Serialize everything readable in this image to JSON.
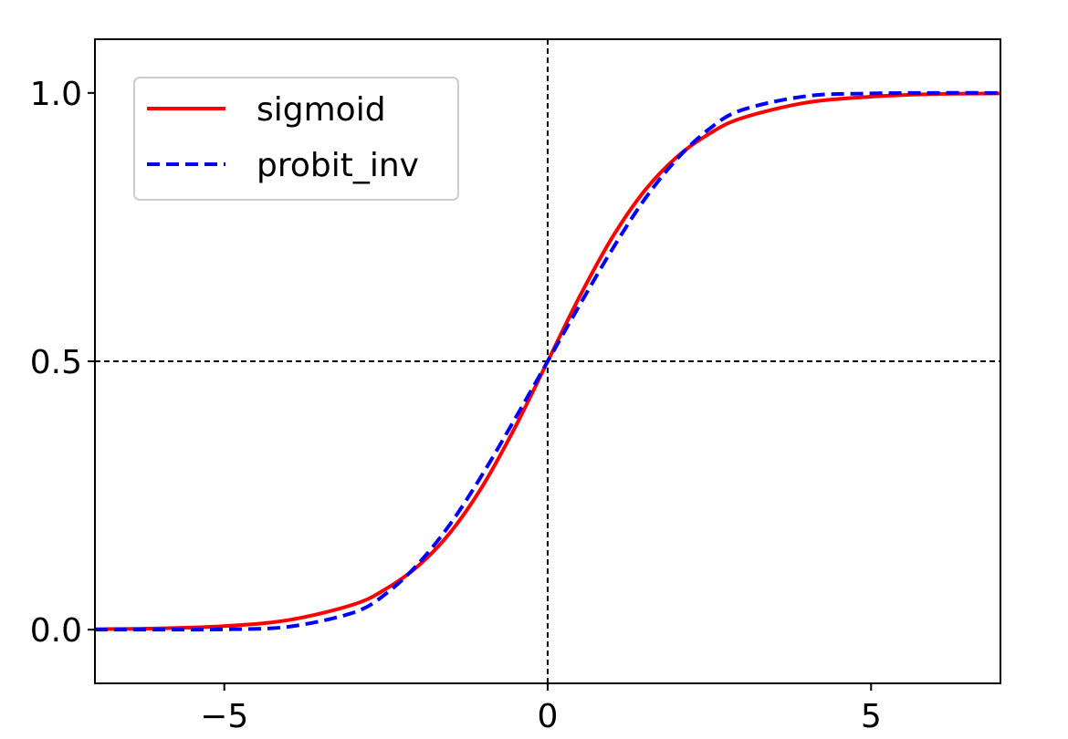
{
  "chart_data": {
    "type": "line",
    "title": "",
    "xlabel": "",
    "ylabel": "",
    "xlim": [
      -7,
      7
    ],
    "ylim": [
      -0.1,
      1.1
    ],
    "xticks": [
      -5,
      0,
      5
    ],
    "xtick_labels": [
      "−5",
      "0",
      "5"
    ],
    "yticks": [
      0.0,
      0.5,
      1.0
    ],
    "ytick_labels": [
      "0.0",
      "0.5",
      "1.0"
    ],
    "grid": false,
    "reference_lines": [
      {
        "orientation": "vertical",
        "value": 0,
        "color": "#000000",
        "style": "dashed"
      },
      {
        "orientation": "horizontal",
        "value": 0.5,
        "color": "#000000",
        "style": "dashed"
      }
    ],
    "legend": {
      "position": "top-left",
      "entries": [
        "sigmoid",
        "probit_inv"
      ]
    },
    "series": [
      {
        "name": "sigmoid",
        "color": "#ff0000",
        "style": "solid",
        "x": [
          -7,
          -6,
          -5,
          -4,
          -3,
          -2.5,
          -2,
          -1.5,
          -1,
          -0.5,
          0,
          0.5,
          1,
          1.5,
          2,
          2.5,
          3,
          4,
          5,
          6,
          7
        ],
        "values": [
          0.0009,
          0.0025,
          0.0067,
          0.018,
          0.047,
          0.076,
          0.119,
          0.182,
          0.269,
          0.378,
          0.5,
          0.622,
          0.731,
          0.818,
          0.881,
          0.924,
          0.953,
          0.982,
          0.993,
          0.998,
          0.999
        ]
      },
      {
        "name": "probit_inv",
        "color": "#0000ff",
        "style": "dashed",
        "x": [
          -7,
          -6,
          -5,
          -4,
          -3,
          -2.5,
          -2,
          -1.5,
          -1,
          -0.5,
          0,
          0.5,
          1,
          1.5,
          2,
          2.5,
          3,
          4,
          5,
          6,
          7
        ],
        "values": [
          0.0,
          0.0001,
          0.0006,
          0.0056,
          0.032,
          0.067,
          0.123,
          0.198,
          0.291,
          0.394,
          0.5,
          0.606,
          0.709,
          0.802,
          0.877,
          0.933,
          0.968,
          0.994,
          0.999,
          1.0,
          1.0
        ]
      }
    ]
  }
}
